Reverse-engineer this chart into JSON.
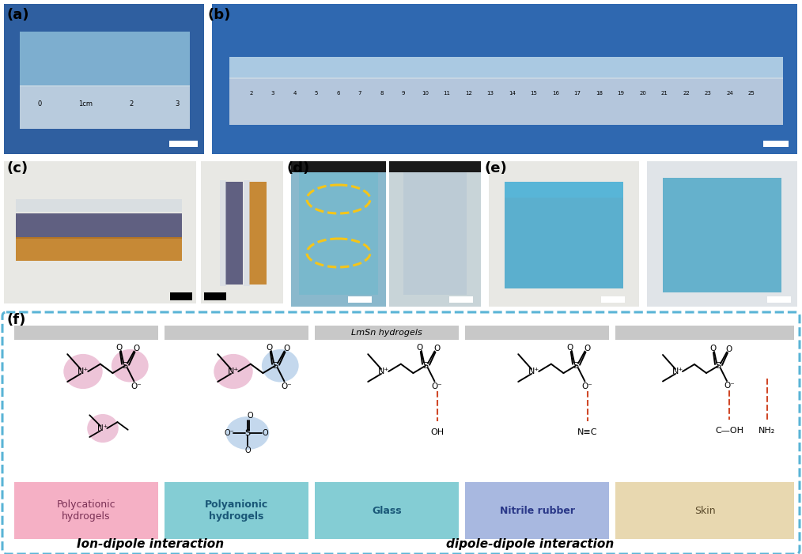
{
  "fig_width": 10.14,
  "fig_height": 7.01,
  "bg_color": "#ffffff",
  "dashed_box_color": "#5ab4d6",
  "gray_bar_color": "#c8c8c8",
  "panel_label_fs": 13,
  "lmsn_label": "LmSn hydrogels",
  "lmsn_label_fs": 8,
  "box_labels": [
    "Polycationic\nhydrogels",
    "Polyanionic\nhydrogels",
    "Glass",
    "Nitrile rubber",
    "Skin"
  ],
  "box_colors": [
    "#f5b0c5",
    "#84cdd4",
    "#84cdd4",
    "#a8b8e0",
    "#e8d8b0"
  ],
  "box_text_colors": [
    "#7a3055",
    "#1a5878",
    "#1a5878",
    "#2a3888",
    "#5a4a2a"
  ],
  "box_text_bold": [
    false,
    true,
    true,
    true,
    false
  ],
  "interaction_label1": "Ion-dipole interaction",
  "interaction_label2": "dipole-dipole interaction",
  "interaction_fs": 11,
  "highlight_pink": "#e8b0cc",
  "highlight_blue": "#b0cce8",
  "dashed_red": "#d04828"
}
